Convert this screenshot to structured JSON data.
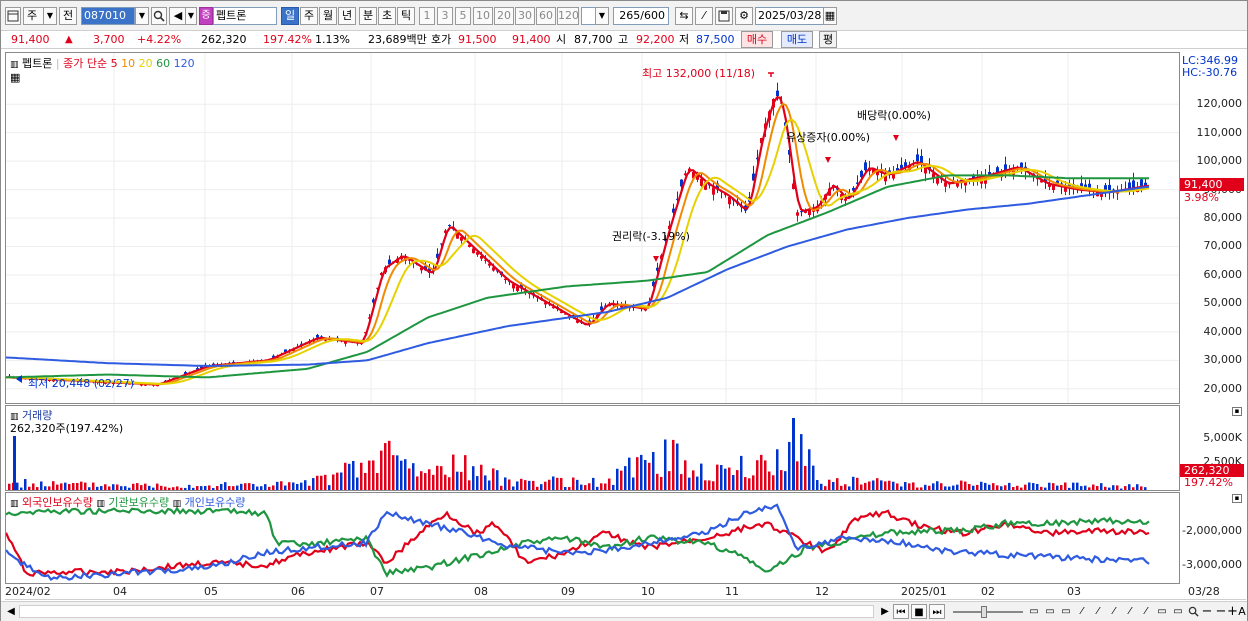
{
  "toolbar": {
    "period_type": "주",
    "prev_label": "전",
    "code": "087010",
    "stock_badge": "증",
    "stock_name": "펩트론",
    "periods": [
      "일",
      "주",
      "월",
      "년",
      "분",
      "초",
      "틱"
    ],
    "minutes": [
      "1",
      "3",
      "5",
      "10",
      "20",
      "30",
      "60",
      "120"
    ],
    "count": "265/600",
    "date": "2025/03/28"
  },
  "quote": {
    "price": "91,400",
    "change": "3,700",
    "change_pct": "+4.22%",
    "volume": "262,320",
    "volume_ratio": "197.42%",
    "turnover": "1.13%",
    "amount": "23,689백만",
    "hoga_label": "호가",
    "ask": "91,500",
    "bid": "91,400",
    "open_label": "시",
    "open": "87,700",
    "high_label": "고",
    "high": "92,200",
    "low_label": "저",
    "low": "87,500",
    "buy_btn": "매수",
    "sell_btn": "매도",
    "eval_btn": "평"
  },
  "price_panel": {
    "stock_label": "펩트론",
    "legend_title": "종가 단순",
    "ma": [
      {
        "label": "5",
        "color": "#e0001a"
      },
      {
        "label": "10",
        "color": "#f08a00"
      },
      {
        "label": "20",
        "color": "#e6d200"
      },
      {
        "label": "60",
        "color": "#1e9640"
      },
      {
        "label": "120",
        "color": "#2e5be0"
      }
    ],
    "lc": "LC:346.99",
    "hc": "HC:-30.76",
    "annotations": {
      "high": "최고 132,000 (11/18)",
      "low": "최저 20,448 (02/27)",
      "rights1": "권리락(-3.19%)",
      "rights2": "유상증자(0.00%)",
      "dividend": "배당락(0.00%)"
    },
    "current_price": "91,400",
    "current_pct": "3.98%"
  },
  "volume_panel": {
    "title": "거래량",
    "value": "262,320주(197.42%)",
    "current": "262,320",
    "current_pct": "197.42%"
  },
  "holder_panel": {
    "series": [
      {
        "label": "외국인보유수량",
        "color": "#e0001a"
      },
      {
        "label": "기관보유수량",
        "color": "#1e9640"
      },
      {
        "label": "개인보유수량",
        "color": "#2e5be0"
      }
    ]
  },
  "x_labels": [
    "2024/02",
    "04",
    "05",
    "06",
    "07",
    "08",
    "09",
    "10",
    "11",
    "12",
    "2025/01",
    "02",
    "03",
    "03/28"
  ],
  "chart_data": [
    {
      "type": "line",
      "title": "펩트론 종가 단순",
      "ylim": [
        15000,
        138000
      ],
      "y_ticks": [
        "120,000",
        "110,000",
        "100,000",
        "90,000",
        "80,000",
        "70,000",
        "60,000",
        "50,000",
        "40,000",
        "30,000",
        "20,000"
      ],
      "x_ticks": [
        "2024/02",
        "04",
        "05",
        "06",
        "07",
        "08",
        "09",
        "10",
        "11",
        "12",
        "2025/01",
        "02",
        "03",
        "03/28"
      ],
      "high": 132000,
      "low": 20448,
      "last": 91400
    },
    {
      "type": "bar",
      "title": "거래량",
      "y_ticks": [
        "5,000K",
        "2,500K"
      ],
      "last": 262320
    },
    {
      "type": "line",
      "title": "보유수량",
      "series": [
        {
          "name": "외국인보유수량"
        },
        {
          "name": "기관보유수량"
        },
        {
          "name": "개인보유수량"
        }
      ],
      "y_ticks": [
        "-2,000,000",
        "-3,000,000"
      ]
    }
  ]
}
